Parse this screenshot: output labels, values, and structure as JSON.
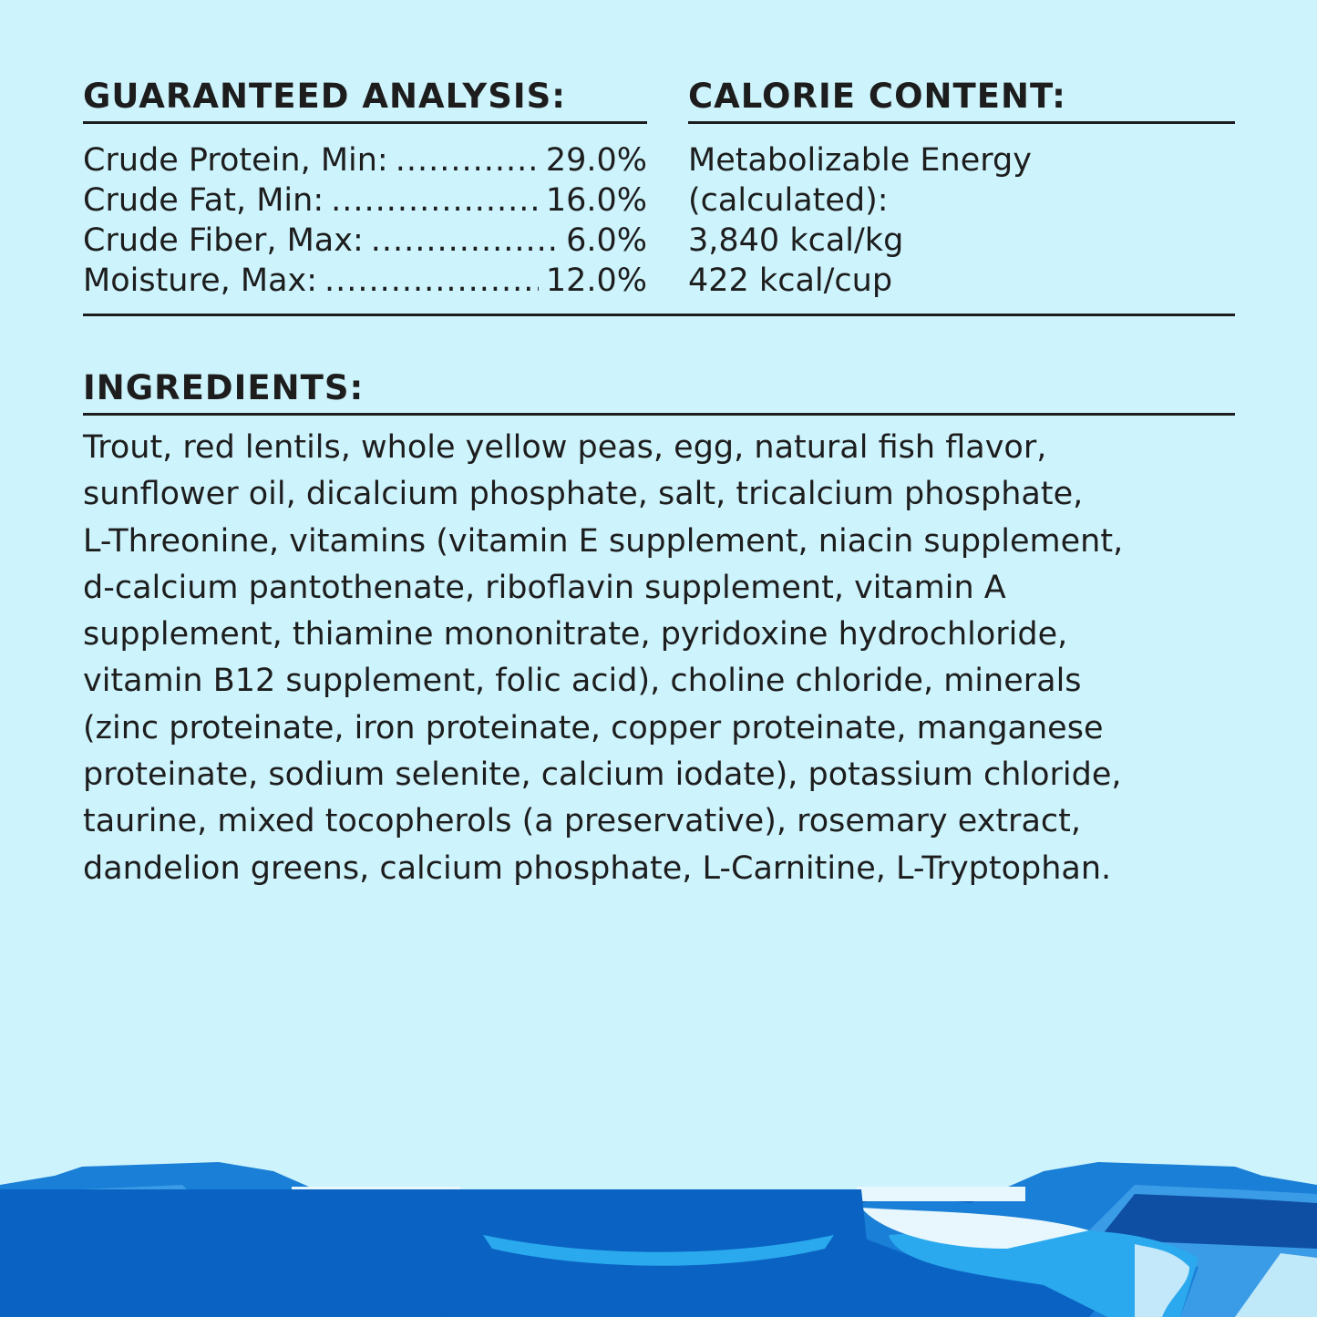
{
  "guaranteed_analysis": {
    "title": "GUARANTEED ANALYSIS:",
    "rows": [
      {
        "label": "Crude Protein, Min:",
        "value": "29.0%"
      },
      {
        "label": "Crude Fat, Min:",
        "value": "16.0%"
      },
      {
        "label": "Crude Fiber, Max:",
        "value": "6.0%"
      },
      {
        "label": "Moisture, Max:",
        "value": "12.0%"
      }
    ]
  },
  "calorie_content": {
    "title": "CALORIE CONTENT:",
    "lines": [
      "Metabolizable Energy",
      "(calculated):",
      "3,840 kcal/kg",
      "422 kcal/cup"
    ]
  },
  "ingredients": {
    "title": "INGREDIENTS:",
    "lines": [
      "Trout, red lentils, whole yellow peas, egg, natural fish flavor,",
      "sunflower oil, dicalcium phosphate, salt, tricalcium phosphate,",
      "L-Threonine, vitamins (vitamin E supplement, niacin supplement,",
      "d-calcium pantothenate, riboflavin supplement, vitamin A",
      "supplement, thiamine mononitrate, pyridoxine hydrochloride,",
      "vitamin B12 supplement, folic acid), choline chloride, minerals",
      "(zinc proteinate, iron proteinate, copper proteinate, manganese",
      "proteinate, sodium selenite, calcium iodate), potassium chloride,",
      "taurine, mixed tocopherols (a preservative), rosemary extract,",
      "dandelion greens, calcium phosphate, L-Carnitine, L-Tryptophan."
    ]
  },
  "colors": {
    "background": "#cdf3fc",
    "text": "#1d1d1d",
    "water": "#0a63c2",
    "ice": "#e8f7fd"
  }
}
